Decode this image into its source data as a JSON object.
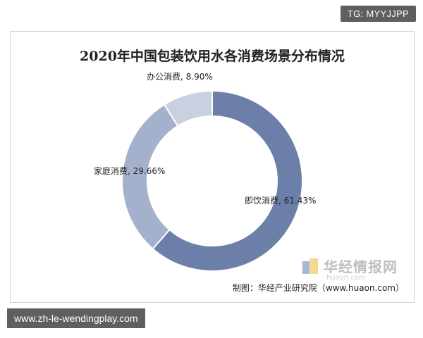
{
  "badge": "TG: MYYJJPP",
  "footer_url": "www.zh-le-wendingplay.com",
  "chart_data": {
    "type": "pie",
    "title": "2020年中国包装饮用水各消费场景分布情况",
    "donut": true,
    "categories": [
      "即饮消费",
      "家庭消费",
      "办公消费"
    ],
    "values": [
      61.43,
      29.66,
      8.9
    ],
    "labels": [
      "即饮消费, 61.43%",
      "家庭消费, 29.66%",
      "办公消费, 8.90%"
    ],
    "colors": [
      "#6b7fa8",
      "#a4b1cd",
      "#c9d0e0"
    ],
    "legend": "none"
  },
  "watermark": {
    "brand": "华经情报网",
    "url": "huaon.com"
  },
  "source": "制图：华经产业研究院（www.huaon.com）"
}
